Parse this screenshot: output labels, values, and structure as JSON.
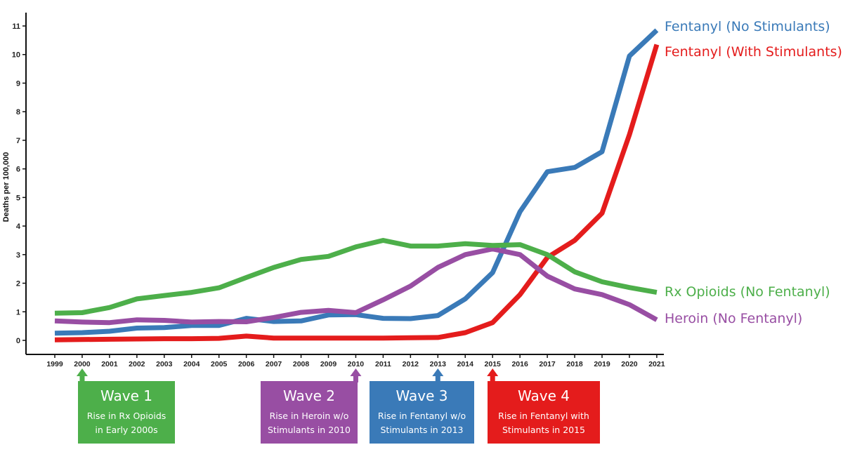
{
  "chart_data": {
    "type": "line",
    "title": "",
    "xlabel": "",
    "ylabel": "Deaths per 100,000",
    "ylim": [
      0,
      11
    ],
    "y_ticks": [
      0,
      1,
      2,
      3,
      4,
      5,
      6,
      7,
      8,
      9,
      10,
      11
    ],
    "x": [
      "1999",
      "2000",
      "2001",
      "2002",
      "2003",
      "2004",
      "2005",
      "2006",
      "2007",
      "2008",
      "2009",
      "2010",
      "2011",
      "2012",
      "2013",
      "2014",
      "2015",
      "2016",
      "2017",
      "2018",
      "2019",
      "2020",
      "2021"
    ],
    "series": [
      {
        "name": "Fentanyl (No Stimulants)",
        "color": "#3a7ab8",
        "values": [
          0.25,
          0.27,
          0.32,
          0.43,
          0.45,
          0.52,
          0.52,
          0.77,
          0.66,
          0.68,
          0.89,
          0.9,
          0.77,
          0.76,
          0.87,
          1.45,
          2.37,
          4.5,
          5.9,
          6.05,
          6.6,
          9.95,
          10.85
        ]
      },
      {
        "name": "Fentanyl (With Stimulants)",
        "color": "#e41c1c",
        "values": [
          0.02,
          0.03,
          0.04,
          0.05,
          0.06,
          0.06,
          0.07,
          0.15,
          0.08,
          0.08,
          0.08,
          0.08,
          0.08,
          0.09,
          0.1,
          0.27,
          0.62,
          1.6,
          2.9,
          3.5,
          4.45,
          7.2,
          10.35
        ]
      },
      {
        "name": "Rx Opioids (No Fentanyl)",
        "color": "#4daf4a",
        "values": [
          0.95,
          0.97,
          1.15,
          1.45,
          1.57,
          1.68,
          1.84,
          2.2,
          2.55,
          2.83,
          2.94,
          3.27,
          3.5,
          3.3,
          3.3,
          3.38,
          3.32,
          3.35,
          3.0,
          2.4,
          2.05,
          1.85,
          1.68
        ]
      },
      {
        "name": "Heroin (No Fentanyl)",
        "color": "#984ea3",
        "values": [
          0.68,
          0.64,
          0.62,
          0.72,
          0.7,
          0.64,
          0.66,
          0.65,
          0.8,
          0.98,
          1.05,
          0.97,
          1.42,
          1.9,
          2.55,
          3.0,
          3.2,
          3.0,
          2.25,
          1.8,
          1.6,
          1.25,
          0.72
        ]
      }
    ],
    "legend": "right-of-lines"
  },
  "waves": [
    {
      "title": "Wave 1",
      "line1": "Rise in Rx Opioids",
      "line2": "in Early 2000s",
      "year": "2000",
      "color": "#4daf4a"
    },
    {
      "title": "Wave 2",
      "line1": "Rise in Heroin w/o",
      "line2": "Stimulants in 2010",
      "year": "2010",
      "color": "#984ea3"
    },
    {
      "title": "Wave 3",
      "line1": "Rise in Fentanyl w/o",
      "line2": "Stimulants in 2013",
      "year": "2013",
      "color": "#3a7ab8"
    },
    {
      "title": "Wave 4",
      "line1": "Rise in Fentanyl with",
      "line2": "Stimulants in 2015",
      "year": "2015",
      "color": "#e41c1c"
    }
  ]
}
